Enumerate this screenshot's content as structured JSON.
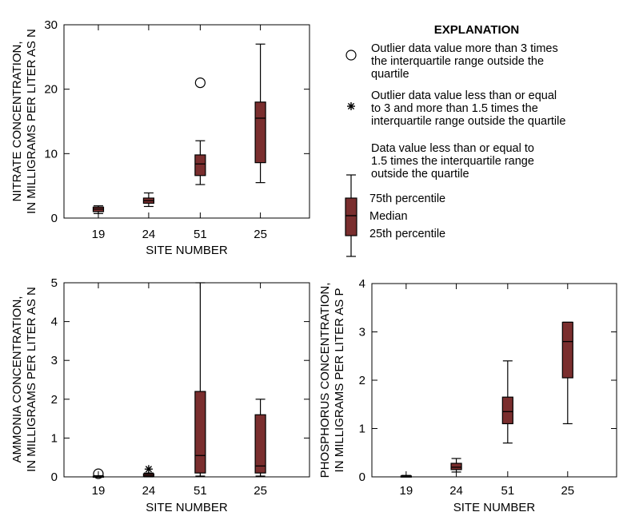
{
  "colors": {
    "box_fill": "#7a2e2e",
    "stroke": "#000000",
    "background": "#ffffff"
  },
  "chart_data": [
    {
      "id": "nitrate",
      "type": "boxplot",
      "xlabel": "SITE NUMBER",
      "ylabel_lines": [
        "NITRATE CONCENTRATION,",
        "IN MILLIGRAMS PER LITER AS N"
      ],
      "categories": [
        "19",
        "24",
        "51",
        "25"
      ],
      "ylim": [
        0,
        30
      ],
      "yticks": [
        0,
        10,
        20,
        30
      ],
      "ytick_labels": [
        "0",
        "10",
        "20",
        "30"
      ],
      "boxes": [
        {
          "site": "19",
          "whisker_low": 0.7,
          "q1": 1.0,
          "median": 1.4,
          "q3": 1.7,
          "whisker_high": 1.9
        },
        {
          "site": "24",
          "whisker_low": 1.8,
          "q1": 2.3,
          "median": 2.7,
          "q3": 3.1,
          "whisker_high": 3.9
        },
        {
          "site": "51",
          "whisker_low": 5.2,
          "q1": 6.6,
          "median": 8.4,
          "q3": 9.8,
          "whisker_high": 12.0
        },
        {
          "site": "25",
          "whisker_low": 5.5,
          "q1": 8.6,
          "median": 15.5,
          "q3": 18.0,
          "whisker_high": 27.0
        }
      ],
      "outliers": [
        {
          "site": "51",
          "value": 21.0,
          "kind": "far"
        }
      ]
    },
    {
      "id": "ammonia",
      "type": "boxplot",
      "xlabel": "SITE NUMBER",
      "ylabel_lines": [
        "AMMONIA CONCENTRATION,",
        "IN MILLIGRAMS PER LITER AS N"
      ],
      "categories": [
        "19",
        "24",
        "51",
        "25"
      ],
      "ylim": [
        0,
        5
      ],
      "yticks": [
        0,
        1,
        2,
        3,
        4,
        5
      ],
      "ytick_labels": [
        "0",
        "1",
        "2",
        "3",
        "4",
        "5"
      ],
      "boxes": [
        {
          "site": "19",
          "whisker_low": 0.0,
          "q1": 0.0,
          "median": 0.01,
          "q3": 0.02,
          "whisker_high": 0.03
        },
        {
          "site": "24",
          "whisker_low": 0.0,
          "q1": 0.01,
          "median": 0.04,
          "q3": 0.08,
          "whisker_high": 0.1
        },
        {
          "site": "51",
          "whisker_low": 0.02,
          "q1": 0.1,
          "median": 0.55,
          "q3": 2.2,
          "whisker_high": 5.0
        },
        {
          "site": "25",
          "whisker_low": 0.02,
          "q1": 0.1,
          "median": 0.28,
          "q3": 1.6,
          "whisker_high": 2.0
        }
      ],
      "outliers": [
        {
          "site": "19",
          "value": 0.08,
          "kind": "far"
        },
        {
          "site": "24",
          "value": 0.2,
          "kind": "near"
        }
      ]
    },
    {
      "id": "phosphorus",
      "type": "boxplot",
      "xlabel": "SITE NUMBER",
      "ylabel_lines": [
        "PHOSPHORUS CONCENTRATION,",
        "IN MILLIGRAMS PER LITER AS P"
      ],
      "categories": [
        "19",
        "24",
        "51",
        "25"
      ],
      "ylim": [
        0,
        4
      ],
      "yticks": [
        0,
        1,
        2,
        3,
        4
      ],
      "ytick_labels": [
        "0",
        "1",
        "2",
        "3",
        "4"
      ],
      "boxes": [
        {
          "site": "19",
          "whisker_low": 0.0,
          "q1": 0.0,
          "median": 0.01,
          "q3": 0.02,
          "whisker_high": 0.03
        },
        {
          "site": "24",
          "whisker_low": 0.1,
          "q1": 0.15,
          "median": 0.2,
          "q3": 0.28,
          "whisker_high": 0.38
        },
        {
          "site": "51",
          "whisker_low": 0.7,
          "q1": 1.1,
          "median": 1.35,
          "q3": 1.65,
          "whisker_high": 2.4
        },
        {
          "site": "25",
          "whisker_low": 1.1,
          "q1": 2.05,
          "median": 2.8,
          "q3": 3.2,
          "whisker_high": 3.2
        }
      ],
      "outliers": []
    }
  ],
  "legend": {
    "title": "EXPLANATION",
    "far_outlier_lines": [
      "Outlier data value more than 3 times",
      "the interquartile range outside the",
      "quartile"
    ],
    "near_outlier_lines": [
      "Outlier data value less than or equal",
      "to 3 and more than 1.5 times the",
      "interquartile range outside the quartile"
    ],
    "whisker_lines": [
      "Data value less than or equal to",
      "1.5 times the interquartile range",
      "outside the quartile"
    ],
    "box_labels": {
      "q3": "75th percentile",
      "median": "Median",
      "q1": "25th percentile"
    }
  }
}
